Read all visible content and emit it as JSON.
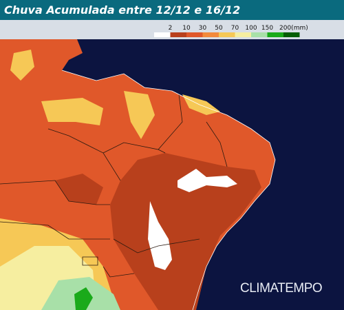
{
  "header": {
    "title": "Chuva Acumulada entre 12/12 e 16/12"
  },
  "legend": {
    "labels": [
      "2",
      "10",
      "30",
      "50",
      "70",
      "100",
      "150",
      "200(mm)"
    ],
    "colors": [
      "#ffffff",
      "#b8401c",
      "#e0582a",
      "#f28a3c",
      "#f6c856",
      "#f6eea0",
      "#a8e0a8",
      "#1aaa1a",
      "#055e05"
    ]
  },
  "brand": "CLIMATEMPO"
}
